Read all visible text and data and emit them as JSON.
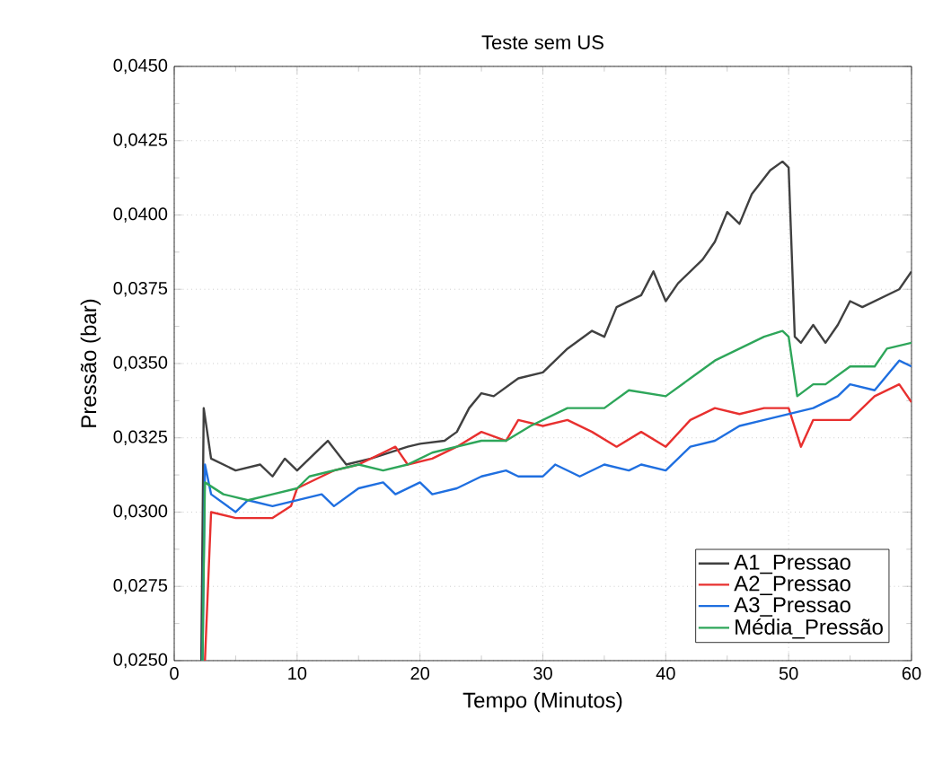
{
  "chart_data": {
    "type": "line",
    "title": "Teste sem US",
    "xlabel": "Tempo (Minutos)",
    "ylabel": "Pressão (bar)",
    "xlim": [
      0,
      60
    ],
    "ylim": [
      0.025,
      0.045
    ],
    "xticks": [
      0,
      10,
      20,
      30,
      40,
      50,
      60
    ],
    "yticks": [
      {
        "value": 0.025,
        "label": "0,0250"
      },
      {
        "value": 0.0275,
        "label": "0,0275"
      },
      {
        "value": 0.03,
        "label": "0,0300"
      },
      {
        "value": 0.0325,
        "label": "0,0325"
      },
      {
        "value": 0.035,
        "label": "0,0350"
      },
      {
        "value": 0.0375,
        "label": "0,0375"
      },
      {
        "value": 0.04,
        "label": "0,0400"
      },
      {
        "value": 0.0425,
        "label": "0,0425"
      },
      {
        "value": 0.045,
        "label": "0,0450"
      }
    ],
    "grid": true,
    "legend": "bottom right",
    "marker": "none",
    "line_style": "solid",
    "series": [
      {
        "name": "A1_Pressao",
        "color": "#404040",
        "x": [
          2.2,
          2.4,
          3,
          5,
          7,
          8,
          9,
          10,
          12,
          12.5,
          14,
          16,
          19,
          20,
          22,
          23,
          24,
          25,
          26,
          28,
          30,
          32,
          34,
          35,
          36,
          38,
          39,
          40,
          41,
          43,
          44,
          45,
          46,
          47,
          48.5,
          49.5,
          50,
          50.5,
          51,
          52,
          53,
          54,
          55,
          56,
          58,
          59,
          60
        ],
        "values": [
          0.025,
          0.0335,
          0.0318,
          0.0314,
          0.0316,
          0.0312,
          0.0318,
          0.0314,
          0.0322,
          0.0324,
          0.0316,
          0.0318,
          0.0322,
          0.0323,
          0.0324,
          0.0327,
          0.0335,
          0.034,
          0.0339,
          0.0345,
          0.0347,
          0.0355,
          0.0361,
          0.0359,
          0.0369,
          0.0373,
          0.0381,
          0.0371,
          0.0377,
          0.0385,
          0.0391,
          0.0401,
          0.0397,
          0.0407,
          0.0415,
          0.0418,
          0.0416,
          0.0359,
          0.0357,
          0.0363,
          0.0357,
          0.0363,
          0.0371,
          0.0369,
          0.0373,
          0.0375,
          0.0381
        ]
      },
      {
        "name": "A2_Pressao",
        "color": "#e8302f",
        "x": [
          2.5,
          3,
          5,
          8,
          9.5,
          10,
          12,
          13,
          15,
          17,
          18,
          19,
          21,
          23,
          25,
          27,
          28,
          30,
          32,
          34,
          36,
          38,
          40,
          42,
          44,
          46,
          48,
          50,
          51,
          52,
          55,
          57,
          59,
          60
        ],
        "values": [
          0.025,
          0.03,
          0.0298,
          0.0298,
          0.0302,
          0.0308,
          0.0312,
          0.0314,
          0.0316,
          0.032,
          0.0322,
          0.0316,
          0.0318,
          0.0322,
          0.0327,
          0.0324,
          0.0331,
          0.0329,
          0.0331,
          0.0327,
          0.0322,
          0.0327,
          0.0322,
          0.0331,
          0.0335,
          0.0333,
          0.0335,
          0.0335,
          0.0322,
          0.0331,
          0.0331,
          0.0339,
          0.0343,
          0.0337
        ]
      },
      {
        "name": "A3_Pressao",
        "color": "#1f6fe0",
        "x": [
          2.3,
          2.5,
          3,
          5,
          6,
          8,
          10,
          12,
          13,
          15,
          17,
          18,
          20,
          21,
          23,
          25,
          27,
          28,
          30,
          31,
          33,
          35,
          37,
          38,
          40,
          42,
          44,
          46,
          48,
          50,
          52,
          54,
          55,
          57,
          59,
          60
        ],
        "values": [
          0.025,
          0.0316,
          0.0306,
          0.03,
          0.0304,
          0.0302,
          0.0304,
          0.0306,
          0.0302,
          0.0308,
          0.031,
          0.0306,
          0.031,
          0.0306,
          0.0308,
          0.0312,
          0.0314,
          0.0312,
          0.0312,
          0.0316,
          0.0312,
          0.0316,
          0.0314,
          0.0316,
          0.0314,
          0.0322,
          0.0324,
          0.0329,
          0.0331,
          0.0333,
          0.0335,
          0.0339,
          0.0343,
          0.0341,
          0.0351,
          0.0349
        ]
      },
      {
        "name": "Média_Pressão",
        "color": "#2ea65a",
        "x": [
          2.3,
          2.5,
          4,
          6,
          8,
          10,
          11,
          13,
          15,
          17,
          19,
          21,
          23,
          25,
          27,
          29,
          30,
          32,
          35,
          37,
          40,
          42,
          44,
          46,
          48,
          49.5,
          50,
          50.7,
          52,
          53,
          55,
          57,
          58,
          60
        ],
        "values": [
          0.025,
          0.031,
          0.0306,
          0.0304,
          0.0306,
          0.0308,
          0.0312,
          0.0314,
          0.0316,
          0.0314,
          0.0316,
          0.032,
          0.0322,
          0.0324,
          0.0324,
          0.0329,
          0.0331,
          0.0335,
          0.0335,
          0.0341,
          0.0339,
          0.0345,
          0.0351,
          0.0355,
          0.0359,
          0.0361,
          0.0359,
          0.0339,
          0.0343,
          0.0343,
          0.0349,
          0.0349,
          0.0355,
          0.0357
        ]
      }
    ]
  }
}
